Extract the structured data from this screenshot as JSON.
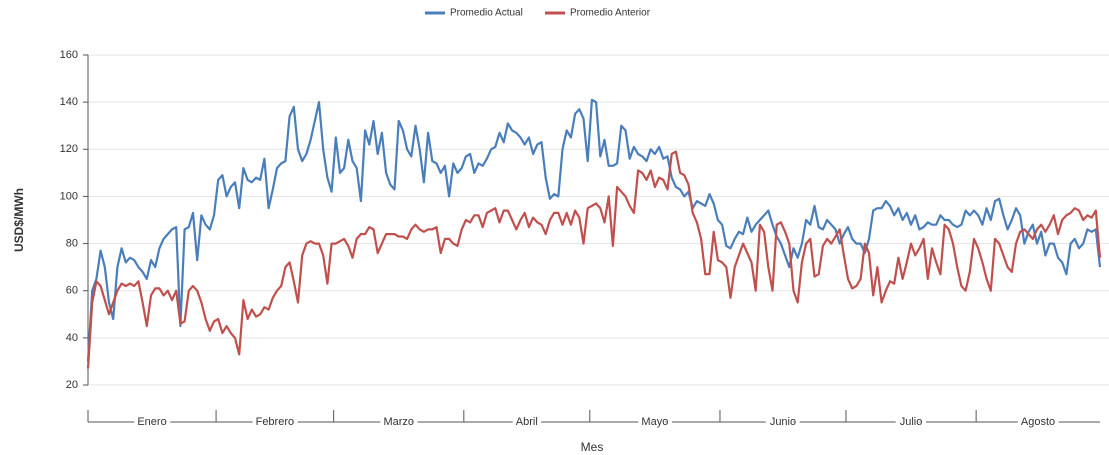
{
  "chart_data": {
    "type": "line",
    "y_label": "USD$/MWh",
    "x_label": "Mes",
    "categories": [
      "Enero",
      "Febrero",
      "Marzo",
      "Abril",
      "Mayo",
      "Junio",
      "Julio",
      "Agosto"
    ],
    "ylim": [
      20,
      160
    ],
    "yticks": [
      20,
      40,
      60,
      80,
      100,
      120,
      140,
      160
    ],
    "grid": true,
    "series": [
      {
        "name": "Promedio Actual",
        "color": "#4a7ebb",
        "values": [
          [
            30,
            60,
            65,
            77,
            70,
            55,
            48,
            70,
            78,
            72,
            74,
            73,
            70,
            68,
            65,
            73,
            70,
            78,
            82,
            84,
            86,
            87,
            45,
            86,
            87,
            93,
            73,
            92,
            88,
            86,
            92
          ],
          [
            107,
            109,
            100,
            104,
            106,
            95,
            112,
            107,
            106,
            108,
            107,
            116,
            95,
            103,
            112,
            114,
            115,
            134,
            138,
            120,
            115,
            118,
            124,
            132,
            140,
            120,
            108,
            102
          ],
          [
            125,
            110,
            112,
            124,
            115,
            112,
            98,
            128,
            122,
            132,
            118,
            127,
            110,
            105,
            103,
            132,
            128,
            120,
            117,
            130,
            120,
            106,
            127,
            115,
            114,
            110,
            113,
            100,
            114,
            110,
            112
          ],
          [
            117,
            118,
            110,
            114,
            113,
            116,
            120,
            121,
            127,
            123,
            131,
            128,
            127,
            125,
            122,
            125,
            118,
            122,
            123,
            108,
            99,
            101,
            100,
            120,
            128,
            125,
            135,
            137,
            133,
            115
          ],
          [
            141,
            140,
            117,
            124,
            113,
            113,
            114,
            130,
            128,
            116,
            121,
            118,
            117,
            115,
            120,
            118,
            121,
            116,
            117,
            108,
            104,
            103,
            100,
            102,
            95,
            98,
            97,
            96,
            101,
            97,
            90
          ],
          [
            88,
            79,
            78,
            82,
            85,
            84,
            91,
            85,
            88,
            90,
            92,
            94,
            88,
            83,
            80,
            75,
            70,
            78,
            74,
            80,
            90,
            88,
            96,
            87,
            86,
            90,
            88,
            86,
            80,
            84
          ],
          [
            87,
            82,
            80,
            80,
            76,
            82,
            94,
            95,
            95,
            98,
            96,
            92,
            95,
            90,
            93,
            88,
            92,
            86,
            87,
            89,
            88,
            88,
            92,
            90,
            90,
            88,
            87,
            88,
            94,
            92,
            94
          ],
          [
            92,
            88,
            95,
            90,
            98,
            99,
            92,
            86,
            90,
            95,
            92,
            80,
            85,
            88,
            80,
            85,
            75,
            80,
            80,
            74,
            72,
            67,
            80,
            82,
            78,
            80,
            86,
            85,
            86,
            70
          ]
        ]
      },
      {
        "name": "Promedio Anterior",
        "color": "#c0504d",
        "values": [
          [
            27,
            55,
            64,
            62,
            56,
            50,
            55,
            60,
            63,
            62,
            63,
            62,
            64,
            55,
            45,
            58,
            61,
            61,
            58,
            60,
            56,
            60,
            46,
            47,
            60,
            62,
            60,
            55,
            48,
            43,
            47
          ],
          [
            48,
            42,
            45,
            42,
            40,
            33,
            56,
            48,
            52,
            49,
            50,
            53,
            52,
            57,
            60,
            62,
            70,
            72,
            64,
            55,
            75,
            80,
            81,
            80,
            80,
            75,
            63,
            80
          ],
          [
            80,
            81,
            82,
            79,
            74,
            82,
            84,
            84,
            87,
            86,
            76,
            80,
            84,
            84,
            84,
            83,
            83,
            82,
            86,
            88,
            86,
            85,
            86,
            86,
            87,
            76,
            82,
            82,
            80,
            79,
            86
          ],
          [
            90,
            89,
            92,
            92,
            87,
            93,
            94,
            95,
            89,
            94,
            94,
            90,
            86,
            90,
            93,
            87,
            91,
            89,
            88,
            84,
            90,
            93,
            93,
            88,
            93,
            88,
            94,
            91,
            80,
            95
          ],
          [
            96,
            97,
            95,
            89,
            100,
            79,
            104,
            102,
            100,
            96,
            93,
            111,
            110,
            107,
            111,
            104,
            108,
            107,
            103,
            118,
            119,
            110,
            109,
            105,
            93,
            89,
            82,
            67,
            67,
            85,
            73
          ],
          [
            72,
            70,
            57,
            70,
            75,
            80,
            76,
            72,
            60,
            88,
            85,
            70,
            60,
            88,
            89,
            85,
            80,
            60,
            55,
            72,
            80,
            82,
            66,
            67,
            79,
            82,
            80,
            83,
            86,
            75
          ],
          [
            65,
            61,
            62,
            65,
            80,
            76,
            58,
            70,
            55,
            60,
            64,
            63,
            74,
            65,
            72,
            80,
            75,
            78,
            82,
            65,
            78,
            72,
            67,
            88,
            86,
            80,
            70,
            62,
            60,
            68,
            82
          ],
          [
            78,
            72,
            65,
            60,
            82,
            80,
            75,
            70,
            68,
            80,
            85,
            86,
            84,
            82,
            86,
            88,
            85,
            88,
            92,
            84,
            90,
            92,
            93,
            95,
            94,
            90,
            92,
            91,
            94,
            74
          ]
        ]
      }
    ]
  }
}
